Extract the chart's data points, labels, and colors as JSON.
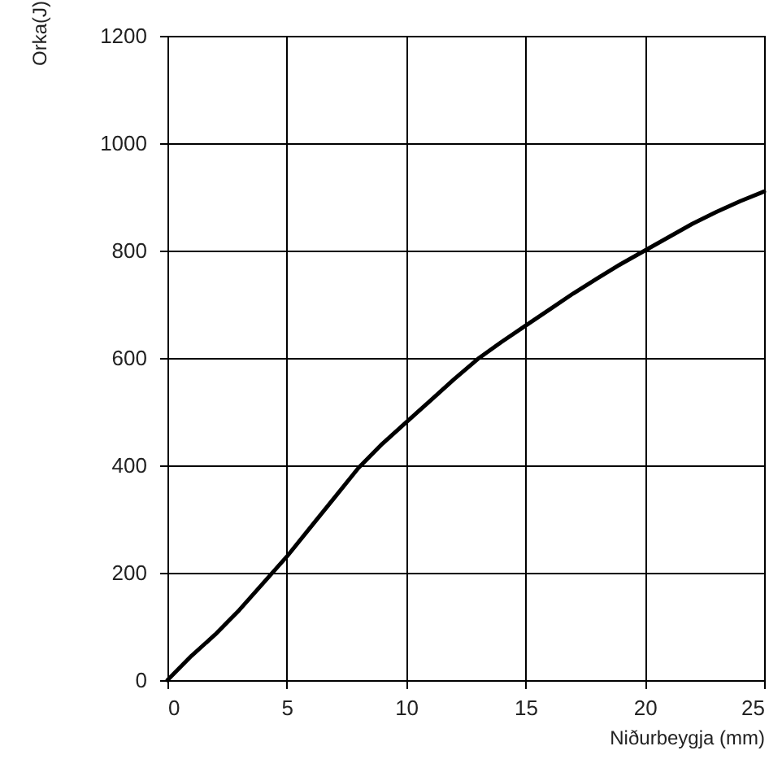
{
  "chart_data": {
    "type": "line",
    "xlabel": "Niðurbeygja (mm)",
    "ylabel": "Orka(J)",
    "x": [
      0,
      1,
      2,
      3,
      4,
      5,
      6,
      7,
      8,
      9,
      10,
      11,
      12,
      13,
      14,
      15,
      16,
      17,
      18,
      19,
      20,
      21,
      22,
      23,
      24,
      25
    ],
    "series": [
      {
        "color": "#000000",
        "values": [
          0,
          45,
          85,
          130,
          180,
          230,
          285,
          340,
          395,
          440,
          480,
          520,
          560,
          598,
          630,
          660,
          690,
          720,
          748,
          775,
          800,
          825,
          850,
          872,
          892,
          910
        ]
      }
    ],
    "xlim": [
      0,
      25
    ],
    "xticks": [
      0,
      5,
      10,
      15,
      20,
      25
    ],
    "ylim": [
      0,
      1200
    ],
    "yticks": [
      0,
      200,
      400,
      600,
      800,
      1000,
      1200
    ],
    "grid": true,
    "marker": "none",
    "line_style": "solid"
  }
}
